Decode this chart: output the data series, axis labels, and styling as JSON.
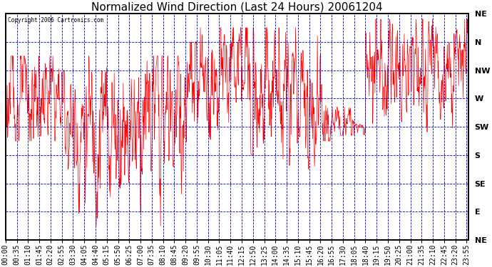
{
  "title": "Normalized Wind Direction (Last 24 Hours) 20061204",
  "copyright_text": "Copyright 2006 Cartronics.com",
  "ytick_labels": [
    "NE",
    "N",
    "NW",
    "W",
    "SW",
    "S",
    "SE",
    "E",
    "NE"
  ],
  "ytick_values": [
    8,
    7,
    6,
    5,
    4,
    3,
    2,
    1,
    0
  ],
  "ymin": 0,
  "ymax": 8,
  "bg_color": "#ffffff",
  "plot_bg_color": "#ffffff",
  "line_color": "#ff0000",
  "grid_color": "#0000cc",
  "border_color": "#000000",
  "title_fontsize": 11,
  "tick_fontsize": 7,
  "seed": 123,
  "xtick_labels": [
    "00:00",
    "00:35",
    "01:10",
    "01:45",
    "02:20",
    "02:55",
    "03:30",
    "04:05",
    "04:40",
    "05:15",
    "05:50",
    "06:25",
    "07:00",
    "07:35",
    "08:10",
    "08:45",
    "09:20",
    "09:55",
    "10:30",
    "11:05",
    "11:40",
    "12:15",
    "12:50",
    "13:25",
    "14:00",
    "14:35",
    "15:10",
    "15:45",
    "16:20",
    "16:55",
    "17:30",
    "18:05",
    "18:40",
    "19:15",
    "19:50",
    "20:25",
    "21:00",
    "21:35",
    "22:10",
    "22:45",
    "23:20",
    "23:55"
  ]
}
